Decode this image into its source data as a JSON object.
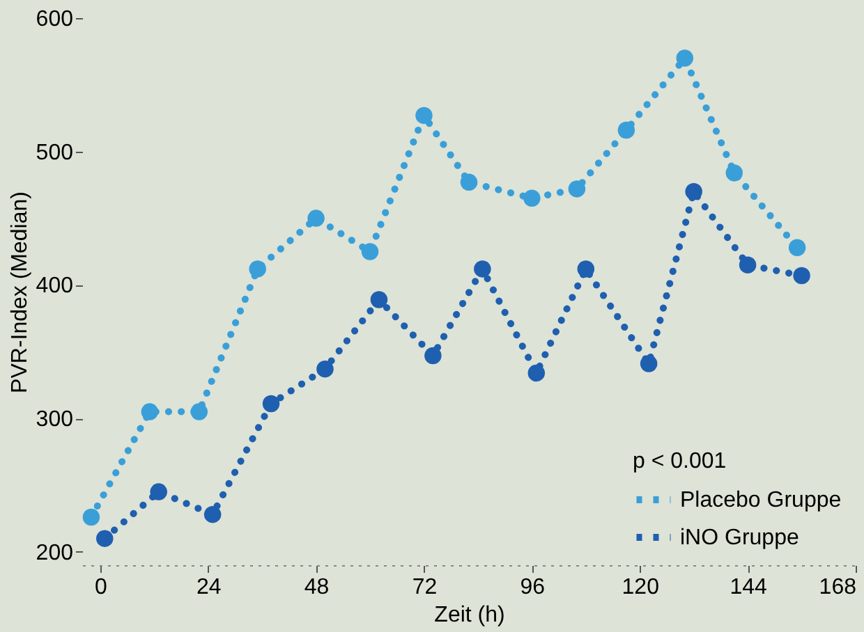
{
  "chart_data": {
    "type": "line",
    "xlabel": "Zeit (h)",
    "ylabel": "PVR-Index (Median)",
    "legend_title": "p < 0.001",
    "series": [
      {
        "name": "Placebo Gruppe",
        "color": "#3a9fd8",
        "x": [
          -2,
          11,
          22,
          35,
          48,
          60,
          72,
          82,
          96,
          106,
          117,
          130,
          141,
          155
        ],
        "values": [
          226,
          305,
          305,
          412,
          450,
          425,
          527,
          477,
          465,
          472,
          516,
          570,
          484,
          428
        ]
      },
      {
        "name": "iNO Gruppe",
        "color": "#1f5fb0",
        "x": [
          1,
          13,
          25,
          38,
          50,
          62,
          74,
          85,
          97,
          108,
          122,
          132,
          144,
          156
        ],
        "values": [
          210,
          245,
          228,
          311,
          337,
          389,
          347,
          412,
          334,
          412,
          341,
          470,
          415,
          407
        ]
      }
    ],
    "xlim": [
      -4,
      168
    ],
    "xticks": [
      0,
      24,
      48,
      72,
      96,
      120,
      144,
      168
    ],
    "ylim": [
      190,
      600
    ],
    "yticks": [
      200,
      300,
      400,
      500,
      600
    ],
    "marker": "circle",
    "line_style": "dotted",
    "grid": false,
    "legend": "bottom right"
  }
}
